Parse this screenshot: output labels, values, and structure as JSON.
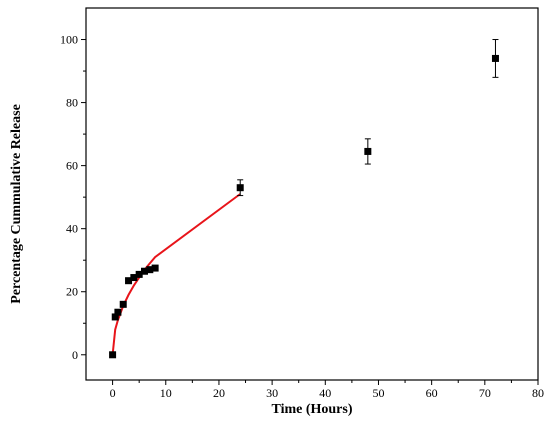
{
  "chart_data": {
    "type": "scatter",
    "xlabel": "Time (Hours)",
    "ylabel": "Percentage Cummulative Release",
    "xlim": [
      -5,
      80
    ],
    "ylim": [
      -8,
      110
    ],
    "x_ticks": [
      0,
      10,
      20,
      30,
      40,
      50,
      60,
      70,
      80
    ],
    "y_ticks": [
      0,
      20,
      40,
      60,
      80,
      100
    ],
    "grid": false,
    "series": [
      {
        "kind": "markers",
        "marker": "square",
        "color": "#000000",
        "points": [
          {
            "x": 0,
            "y": 0
          },
          {
            "x": 0.5,
            "y": 12
          },
          {
            "x": 1,
            "y": 13.5
          },
          {
            "x": 2,
            "y": 16
          },
          {
            "x": 3,
            "y": 23.5
          },
          {
            "x": 4,
            "y": 24.5
          },
          {
            "x": 5,
            "y": 25.5
          },
          {
            "x": 6,
            "y": 26.5
          },
          {
            "x": 7,
            "y": 27
          },
          {
            "x": 8,
            "y": 27.5
          },
          {
            "x": 24,
            "y": 53,
            "err": 2.5
          },
          {
            "x": 48,
            "y": 64.5,
            "err": 4
          },
          {
            "x": 72,
            "y": 94,
            "err": 6
          }
        ]
      },
      {
        "kind": "line",
        "color": "#e8141a",
        "points": [
          {
            "x": 0,
            "y": 0
          },
          {
            "x": 0.5,
            "y": 8
          },
          {
            "x": 1,
            "y": 11
          },
          {
            "x": 2,
            "y": 15.5
          },
          {
            "x": 3,
            "y": 19
          },
          {
            "x": 4,
            "y": 22
          },
          {
            "x": 5,
            "y": 24.5
          },
          {
            "x": 6,
            "y": 27
          },
          {
            "x": 7,
            "y": 29
          },
          {
            "x": 8,
            "y": 31
          },
          {
            "x": 24,
            "y": 51
          }
        ]
      }
    ]
  }
}
